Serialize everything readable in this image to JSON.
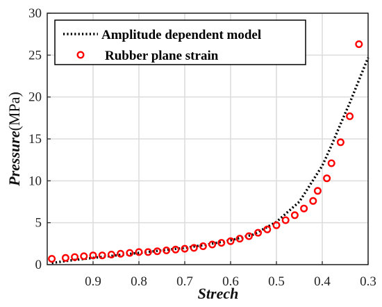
{
  "chart_data": {
    "type": "line",
    "xlabel": "Strech",
    "ylabel_italic": "Pressure",
    "ylabel_unit": "(MPa)",
    "x_reversed": true,
    "xlim": [
      1.0,
      0.3
    ],
    "ylim": [
      0,
      30
    ],
    "x_ticks": [
      0.9,
      0.8,
      0.7,
      0.6,
      0.5,
      0.4,
      0.3
    ],
    "y_ticks": [
      0,
      5,
      10,
      15,
      20,
      25,
      30
    ],
    "grid": true,
    "legend_position": "top-left",
    "series": [
      {
        "name": "Amplitude dependent model",
        "style": "dotted-line",
        "color": "#000000",
        "x": [
          0.99,
          0.95,
          0.9,
          0.85,
          0.8,
          0.75,
          0.7,
          0.65,
          0.6,
          0.55,
          0.5,
          0.45,
          0.4,
          0.38,
          0.36,
          0.34,
          0.32,
          0.3
        ],
        "y": [
          0.2,
          0.5,
          0.8,
          1.1,
          1.4,
          1.7,
          2.0,
          2.4,
          2.9,
          3.6,
          5.1,
          7.5,
          11.8,
          14.2,
          16.8,
          19.3,
          22.0,
          24.7
        ]
      },
      {
        "name": "Rubber plane strain",
        "style": "circle-markers",
        "color": "#ff0000",
        "x": [
          0.99,
          0.96,
          0.94,
          0.92,
          0.9,
          0.88,
          0.86,
          0.84,
          0.82,
          0.8,
          0.78,
          0.76,
          0.74,
          0.72,
          0.7,
          0.68,
          0.66,
          0.64,
          0.62,
          0.6,
          0.58,
          0.56,
          0.54,
          0.52,
          0.5,
          0.48,
          0.46,
          0.44,
          0.42,
          0.41,
          0.39,
          0.38,
          0.36,
          0.34,
          0.32
        ],
        "y": [
          0.7,
          0.8,
          0.9,
          1.0,
          1.1,
          1.1,
          1.2,
          1.3,
          1.4,
          1.5,
          1.5,
          1.6,
          1.7,
          1.8,
          1.9,
          2.0,
          2.2,
          2.4,
          2.6,
          2.8,
          3.1,
          3.4,
          3.8,
          4.2,
          4.7,
          5.3,
          5.9,
          6.7,
          7.6,
          8.8,
          10.3,
          12.1,
          14.6,
          17.7,
          26.3
        ]
      }
    ]
  }
}
